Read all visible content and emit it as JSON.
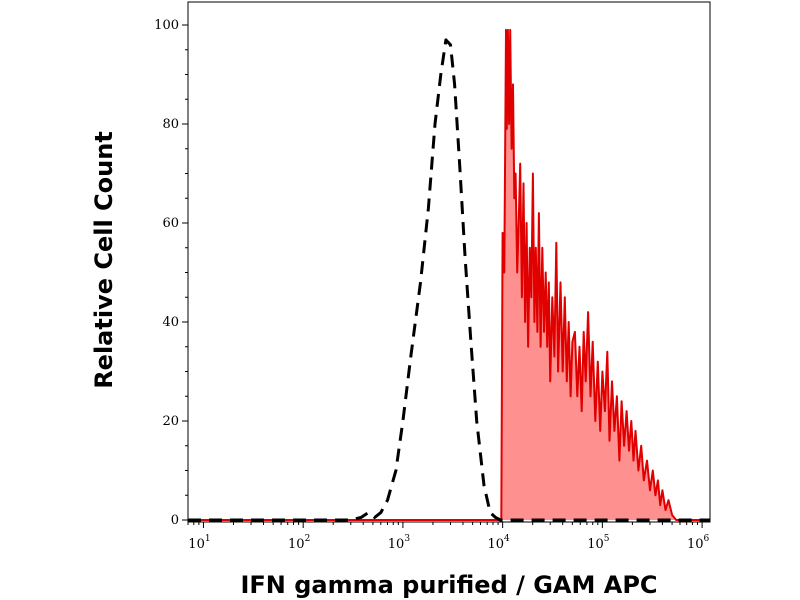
{
  "chart_data": {
    "type": "area",
    "title": "",
    "xlabel": "IFN gamma purified / GAM APC",
    "ylabel": "Relative Cell Count",
    "xscale": "log",
    "xlim": [
      7,
      1200000
    ],
    "ylim": [
      0,
      100
    ],
    "x_ticks": [
      {
        "value": 10,
        "base": "10",
        "exp": "1"
      },
      {
        "value": 100,
        "base": "10",
        "exp": "2"
      },
      {
        "value": 1000,
        "base": "10",
        "exp": "3"
      },
      {
        "value": 10000,
        "base": "10",
        "exp": "4"
      },
      {
        "value": 100000,
        "base": "10",
        "exp": "5"
      },
      {
        "value": 1000000,
        "base": "10",
        "exp": "6"
      }
    ],
    "y_ticks": [
      {
        "value": 0,
        "label": "0"
      },
      {
        "value": 20,
        "label": "20"
      },
      {
        "value": 40,
        "label": "40"
      },
      {
        "value": 60,
        "label": "60"
      },
      {
        "value": 80,
        "label": "80"
      },
      {
        "value": 100,
        "label": "100"
      }
    ],
    "grid": false,
    "legend": "none",
    "series": [
      {
        "style": "dashed",
        "color": "#000000",
        "fill": "none",
        "x": [
          7,
          300,
          380,
          450,
          520,
          600,
          700,
          850,
          1000,
          1200,
          1500,
          1800,
          2100,
          2400,
          2700,
          3000,
          3300,
          3700,
          4200,
          4800,
          5500,
          6500,
          7500,
          8500,
          9500,
          12000,
          30000,
          100000,
          1200000
        ],
        "y": [
          0,
          0,
          0.5,
          1.5,
          0.5,
          1.5,
          4,
          10,
          20,
          33,
          48,
          63,
          80,
          90,
          97,
          96,
          88,
          72,
          53,
          36,
          20,
          7,
          1.5,
          0.5,
          0,
          0,
          0,
          0,
          0
        ]
      },
      {
        "style": "solid",
        "color": "#e00000",
        "fill": "#ff9090",
        "x": [
          7,
          9000,
          9700,
          10000,
          10400,
          10800,
          11000,
          11300,
          11600,
          11900,
          12300,
          12700,
          13100,
          13500,
          14000,
          14500,
          15000,
          15600,
          16200,
          16800,
          17400,
          18000,
          18700,
          19400,
          20100,
          20800,
          21500,
          22300,
          23100,
          24000,
          25000,
          26000,
          27000,
          28000,
          29000,
          30000,
          31500,
          33000,
          34500,
          36000,
          38000,
          40000,
          42000,
          44000,
          46000,
          48000,
          50000,
          53000,
          56000,
          59000,
          62000,
          65000,
          68000,
          72000,
          76000,
          80000,
          85000,
          90000,
          95000,
          100000,
          106000,
          112000,
          118000,
          125000,
          132000,
          140000,
          148000,
          156000,
          165000,
          175000,
          185000,
          195000,
          205000,
          215000,
          230000,
          245000,
          260000,
          280000,
          300000,
          320000,
          340000,
          360000,
          380000,
          400000,
          430000,
          460000,
          500000,
          550000,
          600000,
          700000,
          1200000
        ],
        "y": [
          0,
          0,
          0,
          58,
          50,
          99,
          79,
          99,
          80,
          99,
          75,
          88,
          65,
          70,
          50,
          60,
          72,
          45,
          68,
          40,
          60,
          35,
          55,
          45,
          70,
          40,
          55,
          38,
          62,
          35,
          55,
          38,
          50,
          35,
          48,
          28,
          45,
          33,
          56,
          30,
          48,
          30,
          45,
          28,
          40,
          25,
          36,
          38,
          25,
          35,
          22,
          38,
          28,
          42,
          25,
          36,
          20,
          32,
          18,
          30,
          22,
          34,
          16,
          28,
          18,
          25,
          12,
          24,
          15,
          22,
          14,
          20,
          12,
          18,
          10,
          15,
          8,
          12,
          6,
          10,
          5,
          8,
          3,
          6,
          2,
          4,
          1,
          0,
          0,
          0,
          0
        ]
      }
    ]
  }
}
